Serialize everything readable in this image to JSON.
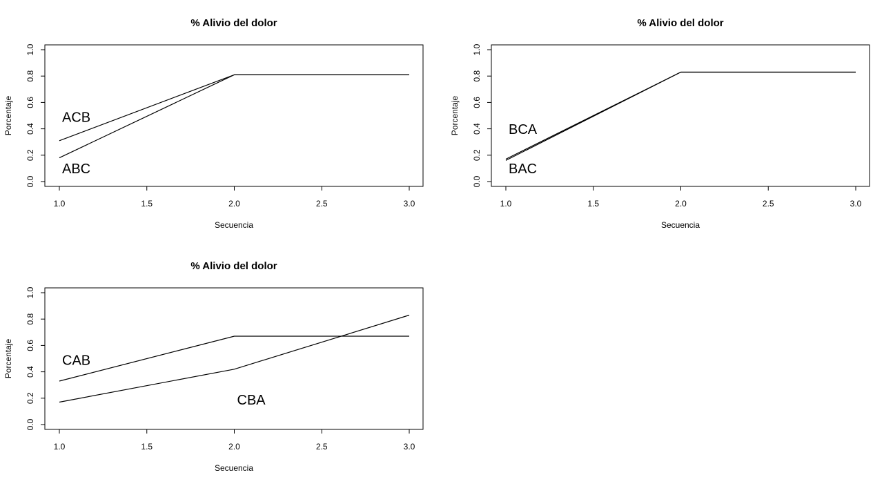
{
  "chart_data": [
    {
      "type": "line",
      "title": "% Alivio del dolor",
      "xlabel": "Secuencia",
      "ylabel": "Porcentaje",
      "x": [
        1,
        2,
        3
      ],
      "xlim": [
        1,
        3
      ],
      "ylim": [
        0,
        1
      ],
      "xticks": [
        "1.0",
        "1.5",
        "2.0",
        "2.5",
        "3.0"
      ],
      "yticks": [
        "0.0",
        "0.2",
        "0.4",
        "0.6",
        "0.8",
        "1.0"
      ],
      "grid": false,
      "legend": "none",
      "series": [
        {
          "values": [
            0.31,
            0.81,
            0.81
          ]
        },
        {
          "values": [
            0.18,
            0.81,
            0.81
          ]
        }
      ],
      "annotations": [
        {
          "text": "ACB",
          "x": 1.0,
          "y": 0.48
        },
        {
          "text": "ABC",
          "x": 1.0,
          "y": 0.09
        }
      ]
    },
    {
      "type": "line",
      "title": "% Alivio del dolor",
      "xlabel": "Secuencia",
      "ylabel": "Porcentaje",
      "x": [
        1,
        2,
        3
      ],
      "xlim": [
        1,
        3
      ],
      "ylim": [
        0,
        1
      ],
      "xticks": [
        "1.0",
        "1.5",
        "2.0",
        "2.5",
        "3.0"
      ],
      "yticks": [
        "0.0",
        "0.2",
        "0.4",
        "0.6",
        "0.8",
        "1.0"
      ],
      "grid": false,
      "legend": "none",
      "series": [
        {
          "values": [
            0.17,
            0.83,
            0.83
          ]
        },
        {
          "values": [
            0.16,
            0.83,
            0.83
          ]
        }
      ],
      "annotations": [
        {
          "text": "BCA",
          "x": 1.0,
          "y": 0.39
        },
        {
          "text": "BAC",
          "x": 1.0,
          "y": 0.09
        }
      ]
    },
    {
      "type": "line",
      "title": "% Alivio del dolor",
      "xlabel": "Secuencia",
      "ylabel": "Porcentaje",
      "x": [
        1,
        2,
        3
      ],
      "xlim": [
        1,
        3
      ],
      "ylim": [
        0,
        1
      ],
      "xticks": [
        "1.0",
        "1.5",
        "2.0",
        "2.5",
        "3.0"
      ],
      "yticks": [
        "0.0",
        "0.2",
        "0.4",
        "0.6",
        "0.8",
        "1.0"
      ],
      "grid": false,
      "legend": "none",
      "series": [
        {
          "values": [
            0.33,
            0.67,
            0.67
          ]
        },
        {
          "values": [
            0.17,
            0.42,
            0.83
          ]
        }
      ],
      "annotations": [
        {
          "text": "CAB",
          "x": 1.0,
          "y": 0.48
        },
        {
          "text": "CBA",
          "x": 2.0,
          "y": 0.18
        }
      ]
    }
  ]
}
